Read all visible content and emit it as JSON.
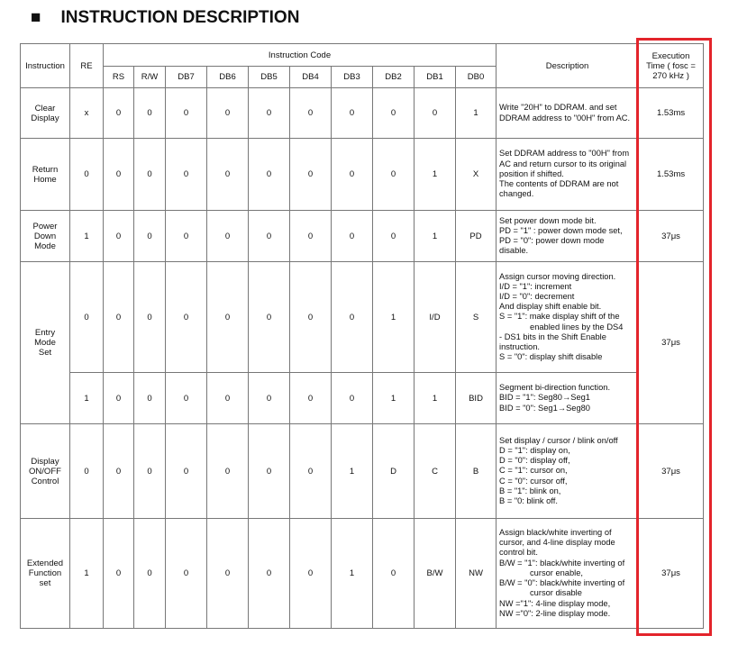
{
  "header": {
    "marker": "■",
    "title": "INSTRUCTION DESCRIPTION"
  },
  "table": {
    "headers": {
      "instruction": "Instruction",
      "re": "RE",
      "code_title": "Instruction Code",
      "code_columns": [
        "RS",
        "R/W",
        "DB7",
        "DB6",
        "DB5",
        "DB4",
        "DB3",
        "DB2",
        "DB1",
        "DB0"
      ],
      "description": "Description",
      "time": "Execution Time ( fosc = 270 kHz )"
    },
    "groups": [
      {
        "instruction": [
          "Clear",
          "Display"
        ],
        "time": "1.53ms",
        "entries": [
          {
            "code": [
              "x",
              0,
              0,
              0,
              0,
              0,
              0,
              0,
              0,
              0,
              1
            ],
            "description": [
              "Write \"20H\" to DDRAM. and set",
              "DDRAM address to \"00H\" from AC."
            ]
          }
        ]
      },
      {
        "instruction": [
          "Return",
          "Home"
        ],
        "time": "1.53ms",
        "entries": [
          {
            "code": [
              0,
              0,
              0,
              0,
              0,
              0,
              0,
              0,
              0,
              1,
              "X"
            ],
            "description": [
              "Set DDRAM address to \"00H\" from",
              "AC and return cursor to its original",
              "position if shifted.",
              "The contents of DDRAM are not",
              "changed."
            ]
          }
        ]
      },
      {
        "instruction": [
          "Power",
          "Down",
          "Mode"
        ],
        "time": "37μs",
        "entries": [
          {
            "code": [
              1,
              0,
              0,
              0,
              0,
              0,
              0,
              0,
              0,
              1,
              "PD"
            ],
            "description": [
              "Set power down mode bit.",
              "PD = \"1\" : power down mode set,",
              "PD = \"0\": power down mode",
              "disable."
            ]
          }
        ]
      },
      {
        "instruction": [
          "Entry",
          "Mode",
          "Set"
        ],
        "time": "37μs",
        "entries": [
          {
            "code": [
              0,
              0,
              0,
              0,
              0,
              0,
              0,
              0,
              1,
              "I/D",
              "S"
            ],
            "description": [
              "Assign cursor moving direction.",
              "I/D = \"1\": increment",
              "I/D = \"0\": decrement",
              "And display shift enable bit.",
              "S = \"1\": make display shift of the",
              {
                "text": "enabled lines by the DS4",
                "indent": true
              },
              "- DS1 bits in the Shift Enable",
              "instruction.",
              "S = \"0\": display shift disable"
            ]
          },
          {
            "code": [
              1,
              0,
              0,
              0,
              0,
              0,
              0,
              0,
              1,
              1,
              "BID"
            ],
            "description": [
              "Segment bi-direction function.",
              "BID = \"1\": Seg80→Seg1",
              "BID = \"0\": Seg1→Seg80"
            ]
          }
        ]
      },
      {
        "instruction": [
          "Display",
          "ON/OFF",
          "Control"
        ],
        "time": "37μs",
        "entries": [
          {
            "code": [
              0,
              0,
              0,
              0,
              0,
              0,
              0,
              1,
              "D",
              "C",
              "B"
            ],
            "description": [
              "Set display /  cursor / blink on/off",
              "D = \"1\": display on,",
              "D = \"0\": display off,",
              "C = \"1\": cursor on,",
              "C = \"0\": cursor off,",
              "B = \"1\": blink on,",
              "B = \"0: blink off."
            ]
          }
        ]
      },
      {
        "instruction": [
          "Extended",
          "Function",
          "set"
        ],
        "time": "37μs",
        "entries": [
          {
            "code": [
              1,
              0,
              0,
              0,
              0,
              0,
              0,
              1,
              0,
              "B/W",
              "NW"
            ],
            "description": [
              "Assign black/white inverting of",
              "cursor, and 4-line display mode",
              "control bit.",
              "B/W = \"1\": black/white inverting of",
              {
                "text": "cursor enable,",
                "indent": true
              },
              "B/W = \"0\": black/white inverting of",
              {
                "text": "cursor disable",
                "indent": true
              },
              "NW =\"1\": 4-line display mode,",
              "NW =\"0\": 2-line display mode."
            ]
          }
        ]
      }
    ]
  }
}
